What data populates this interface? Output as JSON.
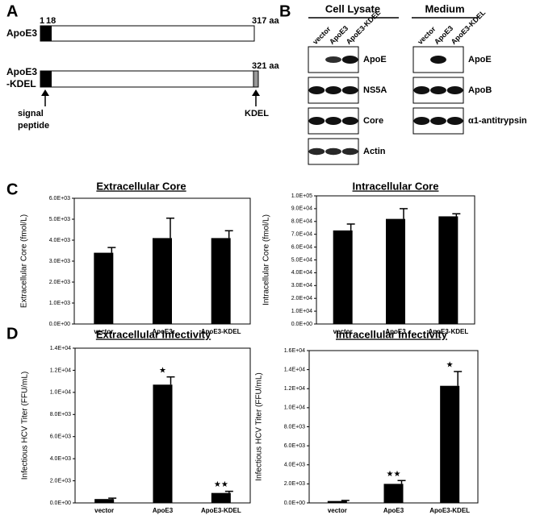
{
  "panel_labels": [
    "A",
    "B",
    "C",
    "D"
  ],
  "panel_a": {
    "constructs": [
      {
        "name_lines": [
          "ApoE3"
        ],
        "start_labels": [
          "1",
          "18"
        ],
        "end_label": "317 aa"
      },
      {
        "name_lines": [
          "ApoE3",
          "-KDEL"
        ],
        "end_label": "321 aa"
      }
    ],
    "signal_label": [
      "signal",
      "peptide"
    ],
    "kdel_label": "KDEL"
  },
  "panel_b": {
    "groups": [
      {
        "title": "Cell Lysate",
        "lanes": [
          "vector",
          "ApoE3",
          "ApoE3-KDEL"
        ],
        "blots": [
          "ApoE",
          "NS5A",
          "Core",
          "Actin"
        ]
      },
      {
        "title": "Medium",
        "lanes": [
          "vector",
          "ApoE3",
          "ApoE3-KDEL"
        ],
        "blots": [
          "ApoE",
          "ApoB",
          "α1-antitrypsin"
        ]
      }
    ]
  },
  "chart_data": [
    {
      "type": "bar",
      "title": "Extracellular Core",
      "ylabel": "Extracellular Core (fmol/L)",
      "color": "#000000",
      "categories": [
        "vector",
        "ApoE3",
        "ApoE3-KDEL"
      ],
      "values": [
        3400,
        4100,
        4100
      ],
      "errors": [
        250,
        950,
        350
      ],
      "ylim": [
        0,
        6000
      ],
      "yticks": [
        {
          "value": 0,
          "label": "0.0E+00"
        },
        {
          "value": 1000,
          "label": "1.0E+03"
        },
        {
          "value": 2000,
          "label": "2.0E+03"
        },
        {
          "value": 3000,
          "label": "3.0E+03"
        },
        {
          "value": 4000,
          "label": "4.0E+03"
        },
        {
          "value": 5000,
          "label": "5.0E+03"
        },
        {
          "value": 6000,
          "label": "6.0E+03"
        }
      ]
    },
    {
      "type": "bar",
      "title": "Intracellular Core",
      "ylabel": "Intracellular Core (fmol/L)",
      "color": "#000000",
      "categories": [
        "vector",
        "ApoE3",
        "ApoE3-KDEL"
      ],
      "values": [
        73000,
        82000,
        84000
      ],
      "errors": [
        5000,
        8000,
        2000
      ],
      "ylim": [
        0,
        100000
      ],
      "yticks": [
        {
          "value": 0,
          "label": "0.0E+00"
        },
        {
          "value": 10000,
          "label": "1.0E+04"
        },
        {
          "value": 20000,
          "label": "2.0E+04"
        },
        {
          "value": 30000,
          "label": "3.0E+04"
        },
        {
          "value": 40000,
          "label": "4.0E+04"
        },
        {
          "value": 50000,
          "label": "5.0E+04"
        },
        {
          "value": 60000,
          "label": "6.0E+04"
        },
        {
          "value": 70000,
          "label": "7.0E+04"
        },
        {
          "value": 80000,
          "label": "8.0E+04"
        },
        {
          "value": 90000,
          "label": "9.0E+04"
        },
        {
          "value": 100000,
          "label": "1.0E+05"
        }
      ]
    },
    {
      "type": "bar",
      "title": "Extracellular Infectivity",
      "ylabel": "Infectious HCV Titer (FFU/mL)",
      "color": "#000000",
      "categories": [
        "vector",
        "ApoE3",
        "ApoE3-KDEL"
      ],
      "values": [
        350,
        10700,
        900
      ],
      "errors": [
        80,
        700,
        150
      ],
      "annotations": [
        null,
        "★",
        "★★"
      ],
      "ylim": [
        0,
        14000
      ],
      "yticks": [
        {
          "value": 0,
          "label": "0.0E+00"
        },
        {
          "value": 2000,
          "label": "2.0E+03"
        },
        {
          "value": 4000,
          "label": "4.0E+03"
        },
        {
          "value": 6000,
          "label": "6.0E+03"
        },
        {
          "value": 8000,
          "label": "8.0E+03"
        },
        {
          "value": 10000,
          "label": "1.0E+04"
        },
        {
          "value": 12000,
          "label": "1.2E+04"
        },
        {
          "value": 14000,
          "label": "1.4E+04"
        }
      ]
    },
    {
      "type": "bar",
      "title": "Intracellular Infectivity",
      "ylabel": "Infectious HCV Titer (FFU/mL)",
      "color": "#000000",
      "categories": [
        "vector",
        "ApoE3",
        "ApoE3-KDEL"
      ],
      "values": [
        200,
        2000,
        12300
      ],
      "errors": [
        60,
        350,
        1500
      ],
      "annotations": [
        null,
        "★★",
        "★"
      ],
      "ylim": [
        0,
        16000
      ],
      "yticks": [
        {
          "value": 0,
          "label": "0.0E+00"
        },
        {
          "value": 2000,
          "label": "2.0E+03"
        },
        {
          "value": 4000,
          "label": "4.0E+03"
        },
        {
          "value": 6000,
          "label": "6.0E+03"
        },
        {
          "value": 8000,
          "label": "8.0E+03"
        },
        {
          "value": 10000,
          "label": "1.0E+04"
        },
        {
          "value": 12000,
          "label": "1.2E+04"
        },
        {
          "value": 14000,
          "label": "1.4E+04"
        },
        {
          "value": 16000,
          "label": "1.6E+04"
        }
      ]
    }
  ]
}
